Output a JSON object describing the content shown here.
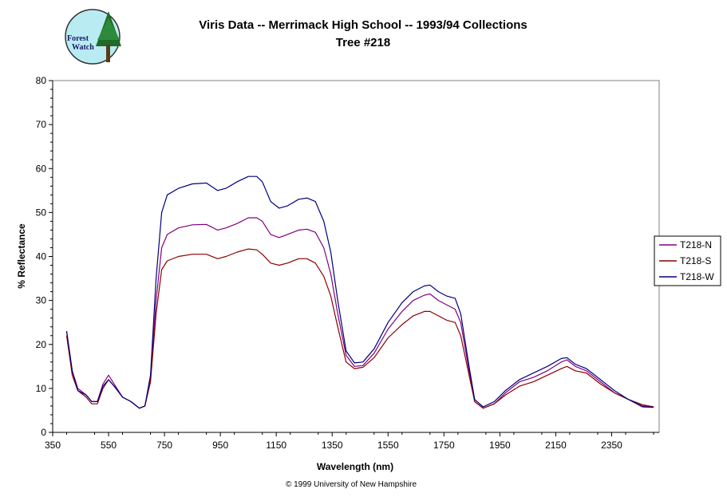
{
  "logo": {
    "line1": "Forest",
    "line2": "Watch"
  },
  "footer": "© 1999 University of New Hampshire",
  "chart_data": {
    "type": "line",
    "title": "Viris Data -- Merrimack High School -- 1993/94 Collections",
    "subtitle": "Tree #218",
    "xlabel": "Wavelength (nm)",
    "ylabel": "% Reflectance",
    "xlim": [
      350,
      2520
    ],
    "ylim": [
      0,
      80
    ],
    "xticks": [
      350,
      550,
      750,
      950,
      1150,
      1350,
      1550,
      1750,
      1950,
      2150,
      2350
    ],
    "yticks": [
      0,
      10,
      20,
      30,
      40,
      50,
      60,
      70,
      80
    ],
    "grid": false,
    "legend_position": "right",
    "series": [
      {
        "name": "T218-N",
        "color": "#800080",
        "points": [
          [
            400,
            23
          ],
          [
            420,
            14
          ],
          [
            440,
            10
          ],
          [
            470,
            8.5
          ],
          [
            490,
            7
          ],
          [
            510,
            7
          ],
          [
            530,
            11
          ],
          [
            550,
            13
          ],
          [
            570,
            11
          ],
          [
            600,
            8
          ],
          [
            630,
            7
          ],
          [
            660,
            5.5
          ],
          [
            680,
            6
          ],
          [
            700,
            12
          ],
          [
            720,
            30
          ],
          [
            740,
            42
          ],
          [
            760,
            45
          ],
          [
            800,
            46.5
          ],
          [
            850,
            47.2
          ],
          [
            900,
            47.3
          ],
          [
            940,
            46
          ],
          [
            970,
            46.5
          ],
          [
            1010,
            47.5
          ],
          [
            1050,
            48.8
          ],
          [
            1080,
            48.8
          ],
          [
            1100,
            48
          ],
          [
            1130,
            45
          ],
          [
            1160,
            44.3
          ],
          [
            1190,
            45
          ],
          [
            1230,
            46
          ],
          [
            1260,
            46.2
          ],
          [
            1290,
            45.5
          ],
          [
            1320,
            42
          ],
          [
            1345,
            36
          ],
          [
            1370,
            27
          ],
          [
            1400,
            17.5
          ],
          [
            1430,
            15
          ],
          [
            1460,
            15.2
          ],
          [
            1500,
            18
          ],
          [
            1550,
            23.5
          ],
          [
            1600,
            27.5
          ],
          [
            1640,
            30
          ],
          [
            1680,
            31.2
          ],
          [
            1700,
            31.5
          ],
          [
            1730,
            30
          ],
          [
            1760,
            29
          ],
          [
            1790,
            28
          ],
          [
            1810,
            25
          ],
          [
            1840,
            14
          ],
          [
            1860,
            7
          ],
          [
            1890,
            5.5
          ],
          [
            1930,
            6.5
          ],
          [
            1970,
            9
          ],
          [
            2020,
            11.5
          ],
          [
            2070,
            12.5
          ],
          [
            2120,
            14
          ],
          [
            2170,
            16
          ],
          [
            2190,
            16.5
          ],
          [
            2220,
            15
          ],
          [
            2260,
            14
          ],
          [
            2310,
            11.5
          ],
          [
            2360,
            9
          ],
          [
            2410,
            7.5
          ],
          [
            2460,
            6
          ],
          [
            2500,
            5.8
          ]
        ]
      },
      {
        "name": "T218-S",
        "color": "#8b0000",
        "points": [
          [
            400,
            22
          ],
          [
            420,
            13
          ],
          [
            440,
            9.5
          ],
          [
            470,
            8
          ],
          [
            490,
            6.5
          ],
          [
            510,
            6.5
          ],
          [
            530,
            10
          ],
          [
            550,
            12
          ],
          [
            570,
            10.5
          ],
          [
            600,
            8
          ],
          [
            630,
            7
          ],
          [
            660,
            5.5
          ],
          [
            680,
            6
          ],
          [
            700,
            11.5
          ],
          [
            720,
            27
          ],
          [
            740,
            37
          ],
          [
            760,
            39
          ],
          [
            800,
            40
          ],
          [
            850,
            40.5
          ],
          [
            900,
            40.5
          ],
          [
            940,
            39.5
          ],
          [
            970,
            40
          ],
          [
            1010,
            41
          ],
          [
            1050,
            41.7
          ],
          [
            1080,
            41.5
          ],
          [
            1100,
            40.5
          ],
          [
            1130,
            38.5
          ],
          [
            1160,
            38
          ],
          [
            1190,
            38.5
          ],
          [
            1230,
            39.5
          ],
          [
            1260,
            39.5
          ],
          [
            1290,
            38.5
          ],
          [
            1320,
            35.5
          ],
          [
            1345,
            31
          ],
          [
            1370,
            24
          ],
          [
            1400,
            16
          ],
          [
            1430,
            14.5
          ],
          [
            1460,
            14.8
          ],
          [
            1500,
            17
          ],
          [
            1550,
            21.5
          ],
          [
            1600,
            24.5
          ],
          [
            1640,
            26.5
          ],
          [
            1680,
            27.5
          ],
          [
            1700,
            27.5
          ],
          [
            1730,
            26.5
          ],
          [
            1760,
            25.5
          ],
          [
            1790,
            25
          ],
          [
            1810,
            22
          ],
          [
            1840,
            13
          ],
          [
            1860,
            7
          ],
          [
            1890,
            5.5
          ],
          [
            1930,
            6.5
          ],
          [
            1970,
            8.5
          ],
          [
            2020,
            10.5
          ],
          [
            2070,
            11.5
          ],
          [
            2120,
            13
          ],
          [
            2170,
            14.5
          ],
          [
            2190,
            15
          ],
          [
            2220,
            14
          ],
          [
            2260,
            13.5
          ],
          [
            2310,
            11
          ],
          [
            2360,
            9
          ],
          [
            2410,
            7.5
          ],
          [
            2460,
            6.3
          ],
          [
            2500,
            5.8
          ]
        ]
      },
      {
        "name": "T218-W",
        "color": "#000080",
        "points": [
          [
            400,
            23
          ],
          [
            420,
            14
          ],
          [
            440,
            9.5
          ],
          [
            470,
            8.5
          ],
          [
            490,
            7
          ],
          [
            510,
            7
          ],
          [
            530,
            10.5
          ],
          [
            550,
            12
          ],
          [
            570,
            10.5
          ],
          [
            600,
            8
          ],
          [
            630,
            7
          ],
          [
            660,
            5.5
          ],
          [
            680,
            6
          ],
          [
            700,
            13
          ],
          [
            720,
            35
          ],
          [
            740,
            50
          ],
          [
            760,
            54
          ],
          [
            800,
            55.5
          ],
          [
            850,
            56.5
          ],
          [
            900,
            56.7
          ],
          [
            940,
            55
          ],
          [
            970,
            55.5
          ],
          [
            1010,
            57
          ],
          [
            1050,
            58.2
          ],
          [
            1080,
            58.2
          ],
          [
            1100,
            57
          ],
          [
            1130,
            52.5
          ],
          [
            1160,
            51
          ],
          [
            1190,
            51.5
          ],
          [
            1230,
            53
          ],
          [
            1260,
            53.3
          ],
          [
            1290,
            52.5
          ],
          [
            1320,
            48
          ],
          [
            1345,
            41
          ],
          [
            1370,
            30
          ],
          [
            1400,
            18.5
          ],
          [
            1430,
            15.8
          ],
          [
            1460,
            16
          ],
          [
            1500,
            19
          ],
          [
            1550,
            25
          ],
          [
            1600,
            29.5
          ],
          [
            1640,
            32
          ],
          [
            1680,
            33.3
          ],
          [
            1700,
            33.5
          ],
          [
            1730,
            32
          ],
          [
            1760,
            31
          ],
          [
            1790,
            30.5
          ],
          [
            1810,
            27
          ],
          [
            1840,
            15
          ],
          [
            1860,
            7.5
          ],
          [
            1890,
            5.8
          ],
          [
            1930,
            7
          ],
          [
            1970,
            9.5
          ],
          [
            2020,
            12
          ],
          [
            2070,
            13.5
          ],
          [
            2120,
            15
          ],
          [
            2170,
            16.8
          ],
          [
            2190,
            17
          ],
          [
            2220,
            15.5
          ],
          [
            2260,
            14.5
          ],
          [
            2310,
            12
          ],
          [
            2360,
            9.5
          ],
          [
            2410,
            7.5
          ],
          [
            2460,
            5.8
          ],
          [
            2500,
            5.7
          ]
        ]
      }
    ]
  }
}
